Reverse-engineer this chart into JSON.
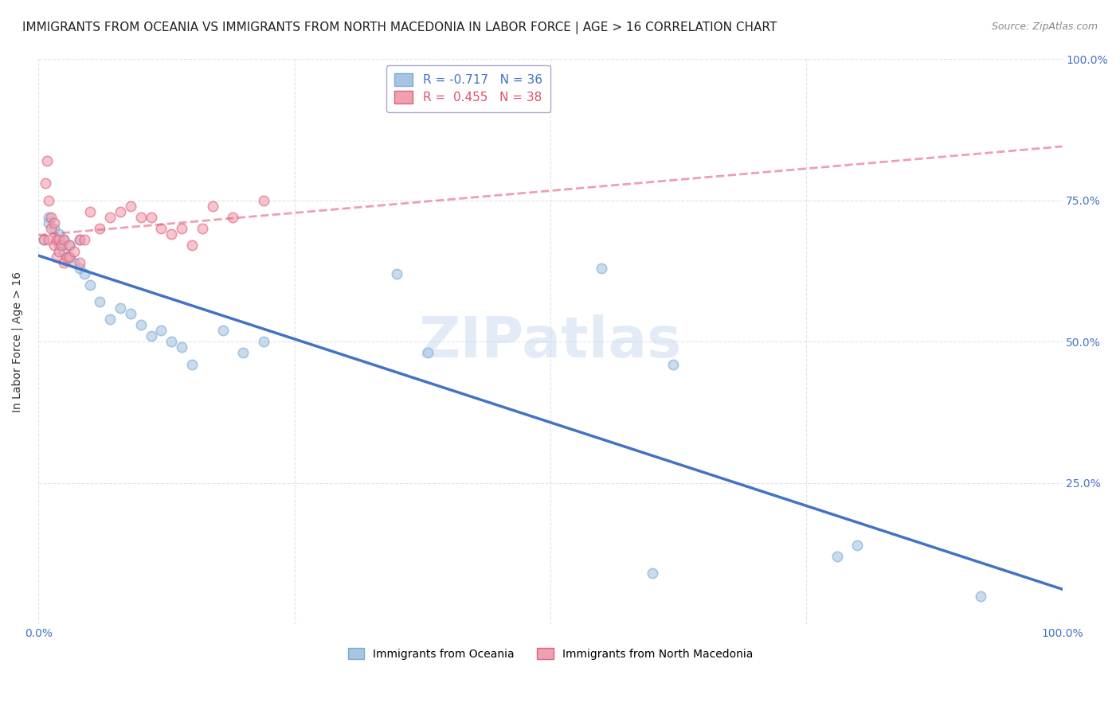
{
  "title": "IMMIGRANTS FROM OCEANIA VS IMMIGRANTS FROM NORTH MACEDONIA IN LABOR FORCE | AGE > 16 CORRELATION CHART",
  "source": "Source: ZipAtlas.com",
  "ylabel": "In Labor Force | Age > 16",
  "xlim": [
    0,
    1.0
  ],
  "ylim": [
    0,
    1.0
  ],
  "oceania_color": "#a8c4e0",
  "oceania_edge": "#7aadd4",
  "macedonia_color": "#f0a0b0",
  "macedonia_edge": "#e06080",
  "trend_oceania_color": "#4472c4",
  "trend_macedonia_color": "#e05070",
  "R_oceania": -0.717,
  "N_oceania": 36,
  "R_macedonia": 0.455,
  "N_macedonia": 38,
  "watermark": "ZIPatlas",
  "oceania_x": [
    0.005,
    0.01,
    0.01,
    0.015,
    0.02,
    0.02,
    0.025,
    0.025,
    0.03,
    0.03,
    0.035,
    0.04,
    0.04,
    0.045,
    0.05,
    0.06,
    0.07,
    0.08,
    0.09,
    0.1,
    0.11,
    0.12,
    0.13,
    0.14,
    0.15,
    0.18,
    0.2,
    0.22,
    0.35,
    0.38,
    0.55,
    0.6,
    0.62,
    0.78,
    0.8,
    0.92
  ],
  "oceania_y": [
    0.68,
    0.72,
    0.71,
    0.7,
    0.67,
    0.69,
    0.68,
    0.66,
    0.67,
    0.65,
    0.64,
    0.63,
    0.68,
    0.62,
    0.6,
    0.57,
    0.54,
    0.56,
    0.55,
    0.53,
    0.51,
    0.52,
    0.5,
    0.49,
    0.46,
    0.52,
    0.48,
    0.5,
    0.62,
    0.48,
    0.63,
    0.09,
    0.46,
    0.12,
    0.14,
    0.05
  ],
  "macedonia_x": [
    0.005,
    0.007,
    0.008,
    0.01,
    0.01,
    0.012,
    0.012,
    0.015,
    0.015,
    0.018,
    0.018,
    0.02,
    0.02,
    0.022,
    0.025,
    0.025,
    0.028,
    0.03,
    0.03,
    0.035,
    0.04,
    0.04,
    0.045,
    0.05,
    0.06,
    0.07,
    0.08,
    0.09,
    0.1,
    0.11,
    0.12,
    0.13,
    0.14,
    0.15,
    0.16,
    0.17,
    0.19,
    0.22
  ],
  "macedonia_y": [
    0.68,
    0.78,
    0.82,
    0.68,
    0.75,
    0.72,
    0.7,
    0.67,
    0.71,
    0.68,
    0.65,
    0.68,
    0.66,
    0.67,
    0.64,
    0.68,
    0.65,
    0.67,
    0.65,
    0.66,
    0.68,
    0.64,
    0.68,
    0.73,
    0.7,
    0.72,
    0.73,
    0.74,
    0.72,
    0.72,
    0.7,
    0.69,
    0.7,
    0.67,
    0.7,
    0.74,
    0.72,
    0.75
  ],
  "marker_size": 80,
  "marker_alpha": 0.6,
  "title_fontsize": 11,
  "label_fontsize": 10,
  "tick_fontsize": 10,
  "legend_fontsize": 11
}
